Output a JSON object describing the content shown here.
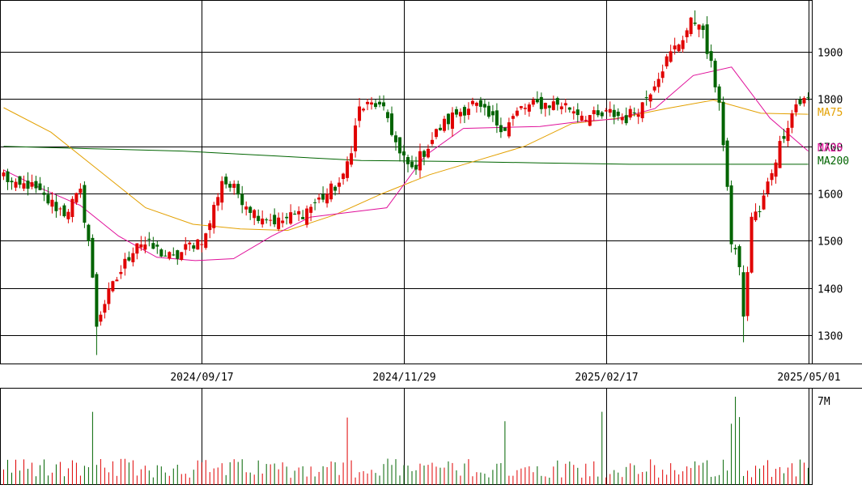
{
  "chart_data": {
    "type": "candlestick",
    "price_panel": {
      "y_ticks": [
        1900,
        1800,
        1700,
        1600,
        1500,
        1400,
        1300
      ],
      "y_range": [
        1240,
        2010
      ],
      "x_labels": [
        "2024/09/17",
        "2024/11/29",
        "2025/02/17",
        "2025/05/01"
      ],
      "x_label_candle_index": [
        49,
        99,
        149,
        199
      ],
      "candle_count": 200,
      "low_min": 1258,
      "high_max": 1988,
      "grid": true,
      "legend": [
        {
          "label": "MA75",
          "color": "#e3a000"
        },
        {
          "label": "MA25",
          "color": "#e0109a"
        },
        {
          "label": "MA200",
          "color": "#006400"
        }
      ],
      "legend_position": "right",
      "ma200": [
        1700,
        1695,
        1690,
        1680,
        1670,
        1668,
        1665,
        1662,
        1662,
        1662
      ],
      "ma75": [
        1782,
        1730,
        1650,
        1570,
        1535,
        1525,
        1522,
        1555,
        1600,
        1640,
        1670,
        1700,
        1748,
        1760,
        1780,
        1798,
        1770,
        1768
      ],
      "ma25": [
        1650,
        1610,
        1575,
        1510,
        1465,
        1458,
        1462,
        1510,
        1550,
        1560,
        1570,
        1680,
        1738,
        1740,
        1742,
        1752,
        1758,
        1780,
        1850,
        1868,
        1760,
        1690
      ],
      "up_color": "#e00000",
      "down_color": "#006400"
    },
    "volume_panel": {
      "label": "7M",
      "max_volume": 7000000,
      "up_color": "#e00000",
      "down_color": "#006400"
    }
  }
}
